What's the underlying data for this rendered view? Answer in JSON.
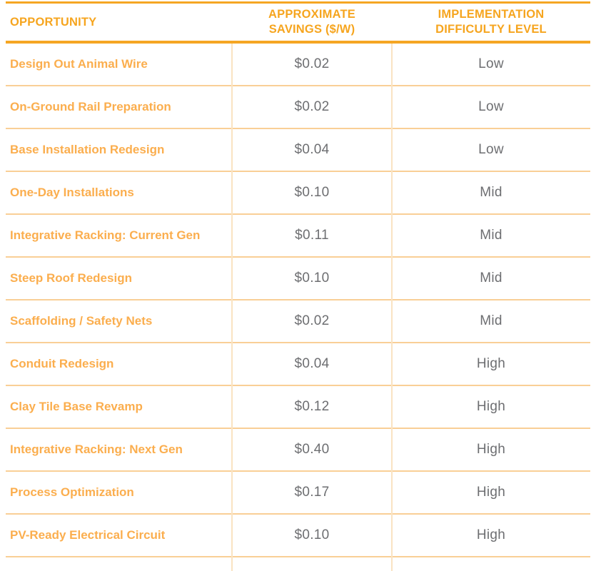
{
  "colors": {
    "header_text": "#F6A51F",
    "strong_rule": "#F5A623",
    "row_label_text": "#FBAE4E",
    "value_text": "#6D6E71",
    "row_separator": "#F9CF96",
    "column_line": "#FAE3C2",
    "background": "#FFFFFF"
  },
  "chart_data": {
    "type": "table",
    "title": "",
    "columns": [
      "OPPORTUNITY",
      "APPROXIMATE SAVINGS ($/W)",
      "IMPLEMENTATION DIFFICULTY LEVEL"
    ],
    "rows": [
      {
        "opportunity": "Design Out Animal Wire",
        "savings": "$0.02",
        "difficulty": "Low"
      },
      {
        "opportunity": "On-Ground Rail Preparation",
        "savings": "$0.02",
        "difficulty": "Low"
      },
      {
        "opportunity": "Base Installation Redesign",
        "savings": "$0.04",
        "difficulty": "Low"
      },
      {
        "opportunity": "One-Day Installations",
        "savings": "$0.10",
        "difficulty": "Mid"
      },
      {
        "opportunity": "Integrative Racking: Current Gen",
        "savings": "$0.11",
        "difficulty": "Mid"
      },
      {
        "opportunity": "Steep Roof Redesign",
        "savings": "$0.10",
        "difficulty": "Mid"
      },
      {
        "opportunity": "Scaffolding / Safety Nets",
        "savings": "$0.02",
        "difficulty": "Mid"
      },
      {
        "opportunity": "Conduit Redesign",
        "savings": "$0.04",
        "difficulty": "High"
      },
      {
        "opportunity": "Clay Tile Base Revamp",
        "savings": "$0.12",
        "difficulty": "High"
      },
      {
        "opportunity": "Integrative Racking: Next Gen",
        "savings": "$0.40",
        "difficulty": "High"
      },
      {
        "opportunity": "Process Optimization",
        "savings": "$0.17",
        "difficulty": "High"
      },
      {
        "opportunity": "PV-Ready Electrical Circuit",
        "savings": "$0.10",
        "difficulty": "High"
      }
    ],
    "savings_values_numeric": [
      0.02,
      0.02,
      0.04,
      0.1,
      0.11,
      0.1,
      0.02,
      0.04,
      0.12,
      0.4,
      0.17,
      0.1
    ],
    "difficulty_levels": [
      "Low",
      "Mid",
      "High"
    ]
  }
}
